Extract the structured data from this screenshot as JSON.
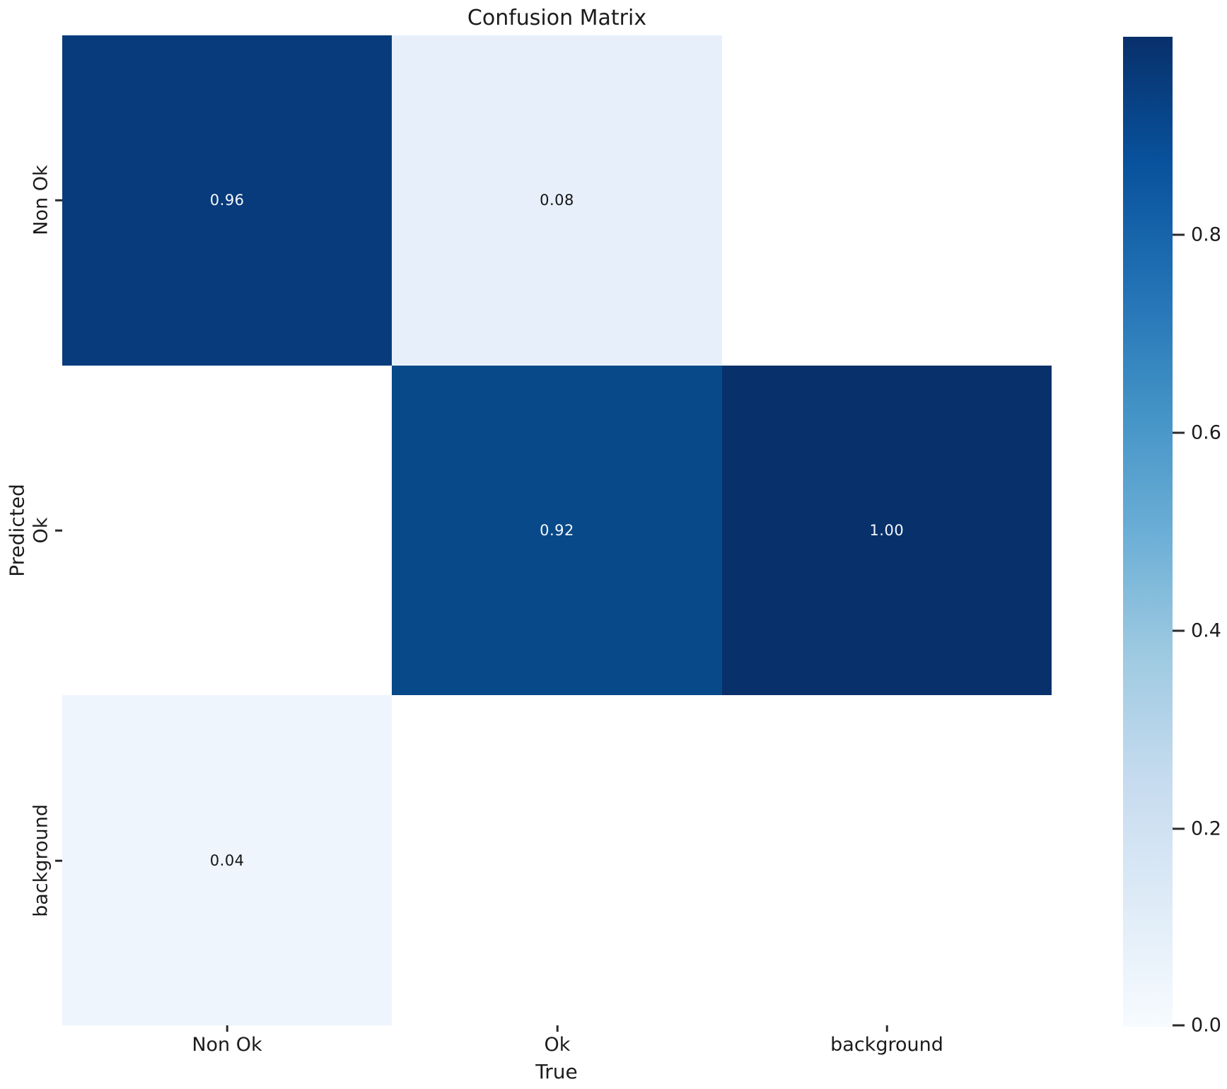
{
  "chart_data": {
    "type": "heatmap",
    "title": "Confusion Matrix",
    "xlabel": "True",
    "ylabel": "Predicted",
    "x_categories": [
      "Non Ok",
      "Ok",
      "background"
    ],
    "y_categories": [
      "Non Ok",
      "Ok",
      "background"
    ],
    "colormap": "Blues",
    "grid": "off",
    "rows": [
      {
        "label": "Non Ok",
        "values": [
          0.96,
          0.08,
          null
        ]
      },
      {
        "label": "Ok",
        "values": [
          null,
          0.92,
          1.0
        ]
      },
      {
        "label": "background",
        "values": [
          0.04,
          null,
          null
        ]
      }
    ],
    "cells": [
      {
        "row": "Non Ok",
        "col": "Non Ok",
        "value": 0.96,
        "label": "0.96",
        "bg": "#083b7c",
        "fg": "#f5f8fc"
      },
      {
        "row": "Non Ok",
        "col": "Ok",
        "value": 0.08,
        "label": "0.08",
        "bg": "#e7f0fa",
        "fg": "#151515"
      },
      {
        "row": "Non Ok",
        "col": "background",
        "value": null,
        "label": "",
        "bg": "#ffffff",
        "fg": "#151515"
      },
      {
        "row": "Ok",
        "col": "Non Ok",
        "value": null,
        "label": "",
        "bg": "#ffffff",
        "fg": "#151515"
      },
      {
        "row": "Ok",
        "col": "Ok",
        "value": 0.92,
        "label": "0.92",
        "bg": "#084989",
        "fg": "#f5f8fc"
      },
      {
        "row": "Ok",
        "col": "background",
        "value": 1.0,
        "label": "1.00",
        "bg": "#08306b",
        "fg": "#f5f8fc"
      },
      {
        "row": "background",
        "col": "Non Ok",
        "value": 0.04,
        "label": "0.04",
        "bg": "#eef5fc",
        "fg": "#151515"
      },
      {
        "row": "background",
        "col": "Ok",
        "value": null,
        "label": "",
        "bg": "#ffffff",
        "fg": "#151515"
      },
      {
        "row": "background",
        "col": "background",
        "value": null,
        "label": "",
        "bg": "#ffffff",
        "fg": "#151515"
      }
    ],
    "colorbar": {
      "min": 0.0,
      "max": 1.0,
      "position": "right",
      "gradient_top_to_bottom": [
        "#08306b",
        "#08519c",
        "#2171b5",
        "#4292c6",
        "#6baed6",
        "#9ecae1",
        "#c6dbef",
        "#deebf7",
        "#f7fbff"
      ],
      "ticks": [
        {
          "label": "0.8",
          "pos": 0.2
        },
        {
          "label": "0.6",
          "pos": 0.4
        },
        {
          "label": "0.4",
          "pos": 0.6
        },
        {
          "label": "0.2",
          "pos": 0.8
        },
        {
          "label": "0.0",
          "pos": 1.0
        }
      ]
    }
  }
}
